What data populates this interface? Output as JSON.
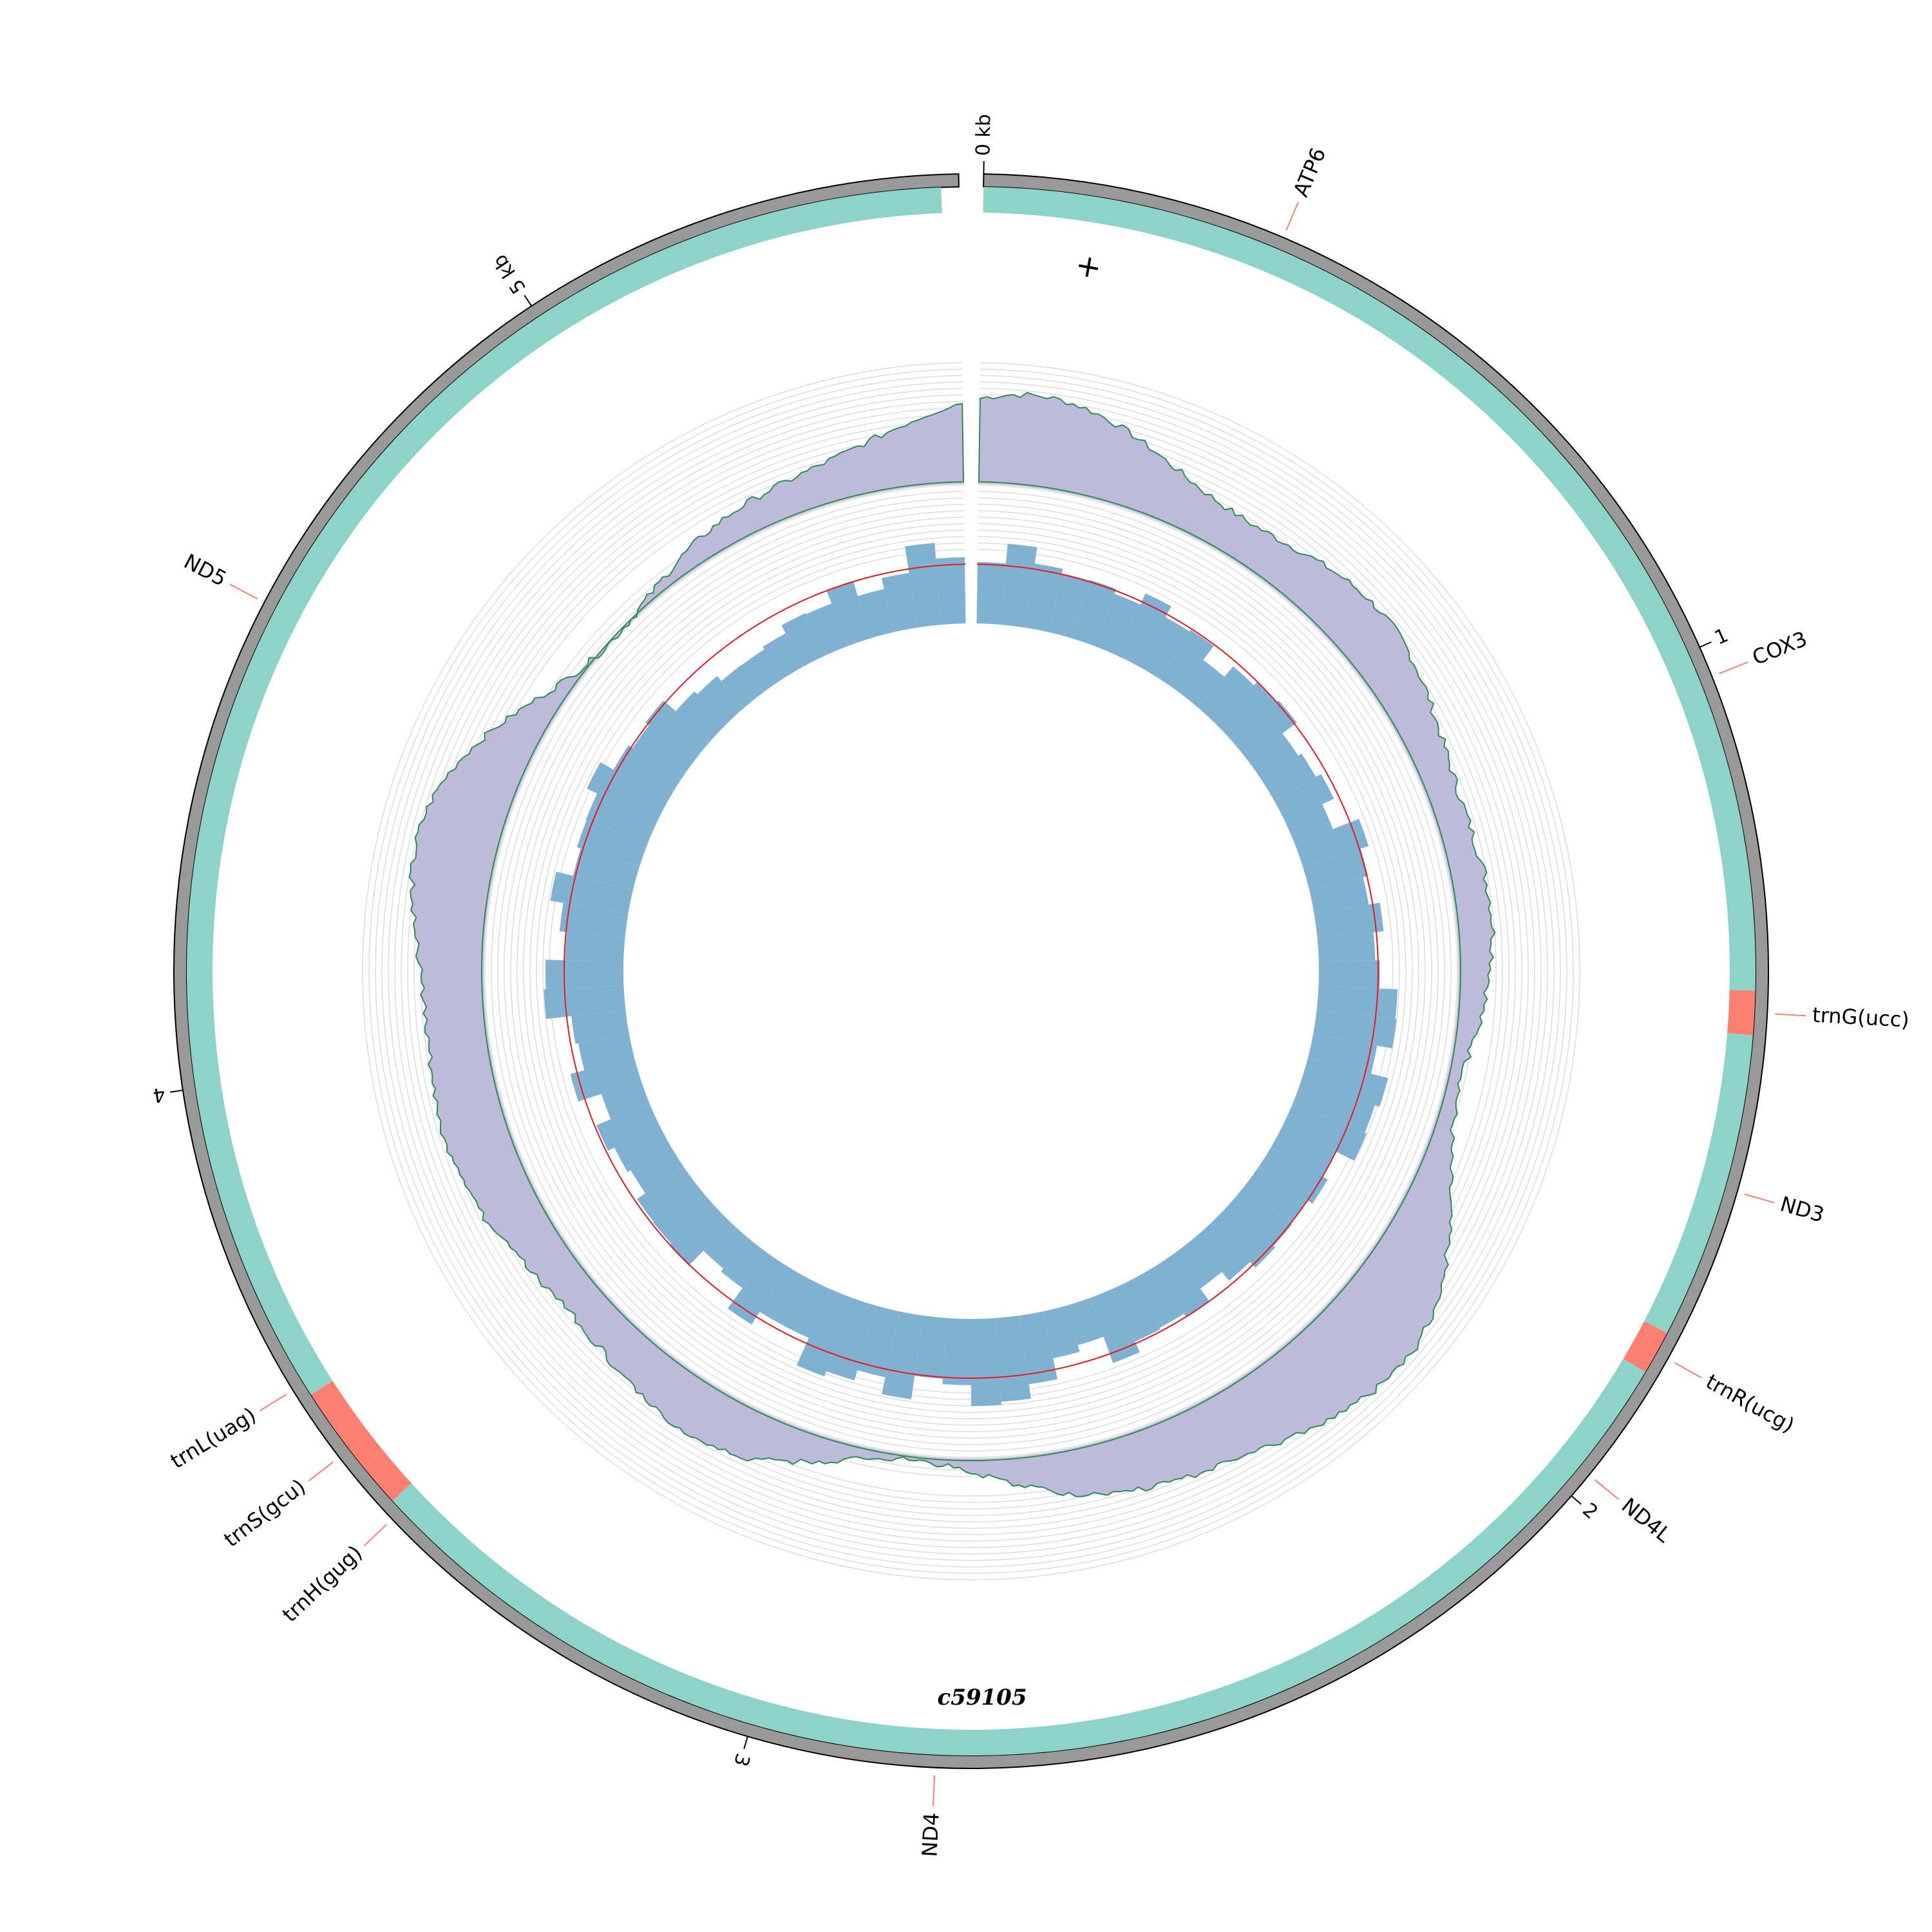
{
  "title": "c59105",
  "strand_symbol": "+",
  "genome_length_kb": 5.5,
  "colors": {
    "backbone": "#999999",
    "cds": "#8dd3c7",
    "trna": "#fb8072",
    "label_line": "#fb8072",
    "gc_content": "#bebada",
    "gc_outline": "#2e8b57",
    "skew_bars": "#80b1d3",
    "mean_line": "#e41a1c",
    "grid": "#dddddd"
  },
  "ticks": [
    {
      "kb": 0,
      "label": "0 kb"
    },
    {
      "kb": 1,
      "label": "1"
    },
    {
      "kb": 2,
      "label": "2"
    },
    {
      "kb": 3,
      "label": "3"
    },
    {
      "kb": 4,
      "label": "4"
    },
    {
      "kb": 5,
      "label": "5 kb"
    }
  ],
  "genes": [
    {
      "name": "ATP6",
      "type": "cds",
      "start": 0.0,
      "end": 0.68
    },
    {
      "name": "COX3",
      "type": "cds",
      "start": 0.68,
      "end": 1.39
    },
    {
      "name": "trnG(ucc)",
      "type": "trna",
      "start": 1.39,
      "end": 1.44
    },
    {
      "name": "ND3",
      "type": "cds",
      "start": 1.44,
      "end": 1.79
    },
    {
      "name": "trnR(ucg)",
      "type": "trna",
      "start": 1.79,
      "end": 1.84
    },
    {
      "name": "ND4L",
      "type": "cds",
      "start": 1.84,
      "end": 2.1
    },
    {
      "name": "ND4",
      "type": "cds",
      "start": 2.1,
      "end": 3.48
    },
    {
      "name": "trnH(gug)",
      "type": "trna",
      "start": 3.48,
      "end": 3.53
    },
    {
      "name": "trnS(gcu)",
      "type": "trna",
      "start": 3.53,
      "end": 3.58
    },
    {
      "name": "trnL(uag)",
      "type": "trna",
      "start": 3.58,
      "end": 3.63
    },
    {
      "name": "ND5",
      "type": "cds",
      "start": 3.63,
      "end": 5.48
    }
  ]
}
